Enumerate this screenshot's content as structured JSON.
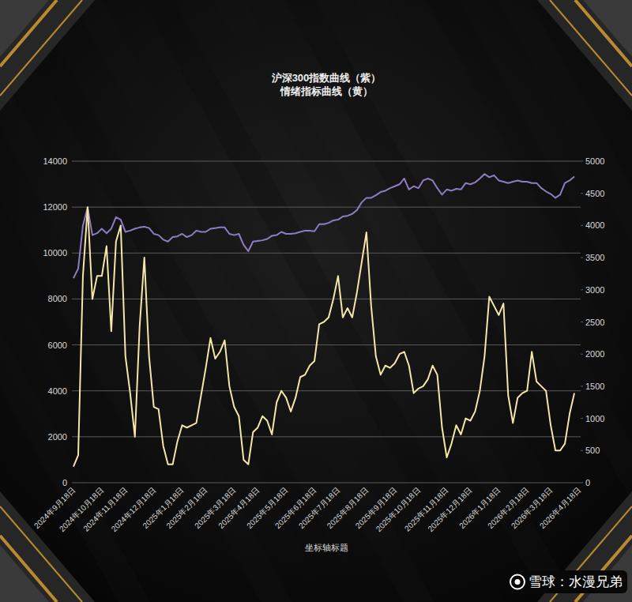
{
  "chart_data": {
    "type": "line",
    "title": "沪深300指数曲线（紫）",
    "subtitle": "情绪指标曲线（黄）",
    "xlabel": "坐标轴标题",
    "annotations": [
      "雪球：水漫兄弟"
    ],
    "grid": true,
    "ylim": [
      0,
      14000
    ],
    "yticks": [
      0,
      2000,
      4000,
      6000,
      8000,
      10000,
      12000,
      14000
    ],
    "y2lim": [
      0,
      5000
    ],
    "y2ticks": [
      0,
      500,
      1000,
      1500,
      2000,
      2500,
      3000,
      3500,
      4000,
      4500,
      5000
    ],
    "categories": [
      "2024年9月18日",
      null,
      null,
      null,
      null,
      null,
      "2024年10月18日",
      null,
      null,
      null,
      null,
      "2024年11月18日",
      null,
      null,
      null,
      null,
      null,
      "2024年12月18日",
      null,
      null,
      null,
      null,
      null,
      "2025年1月18日",
      null,
      null,
      null,
      null,
      "2025年2月18日",
      null,
      null,
      null,
      null,
      null,
      "2025年3月18日",
      null,
      null,
      null,
      null,
      "2025年4月18日",
      null,
      null,
      null,
      null,
      null,
      "2025年5月18日",
      null,
      null,
      null,
      null,
      null,
      "2025年6月18日",
      null,
      null,
      null,
      null,
      "2025年7月18日",
      null,
      null,
      null,
      null,
      null,
      "2025年8月18日",
      null,
      null,
      null,
      null,
      null,
      "2025年9月18日",
      null,
      null,
      null,
      null,
      "2025年10月18日",
      null,
      null,
      null,
      null,
      null,
      "2025年11月18日",
      null,
      null,
      null,
      null,
      "2025年12月18日",
      null,
      null,
      null,
      null,
      null,
      "2026年1月18日",
      null,
      null,
      null,
      null,
      null,
      "2026年2月18日",
      null,
      null,
      null,
      null,
      "2026年3月18日",
      null,
      null,
      null,
      null,
      null,
      "2026年4月18日"
    ],
    "series": [
      {
        "color": "#8e7cc3",
        "axis": "y2",
        "values": [
          3180,
          3330,
          4000,
          4280,
          3850,
          3880,
          3950,
          3880,
          3950,
          4130,
          4090,
          3900,
          3920,
          3950,
          3970,
          3980,
          3960,
          3870,
          3850,
          3780,
          3750,
          3820,
          3830,
          3870,
          3820,
          3850,
          3920,
          3900,
          3900,
          3950,
          3960,
          3970,
          3970,
          3870,
          3850,
          3870,
          3700,
          3600,
          3750,
          3760,
          3770,
          3790,
          3840,
          3850,
          3900,
          3870,
          3870,
          3880,
          3900,
          3920,
          3920,
          3910,
          4020,
          4020,
          4040,
          4080,
          4090,
          4140,
          4150,
          4180,
          4240,
          4360,
          4430,
          4430,
          4470,
          4520,
          4540,
          4580,
          4610,
          4640,
          4730,
          4560,
          4610,
          4580,
          4700,
          4730,
          4700,
          4580,
          4480,
          4560,
          4540,
          4570,
          4560,
          4660,
          4640,
          4670,
          4730,
          4800,
          4750,
          4780,
          4700,
          4680,
          4660,
          4680,
          4700,
          4680,
          4680,
          4660,
          4660,
          4580,
          4530,
          4490,
          4430,
          4480,
          4660,
          4700,
          4760,
          null
        ]
      },
      {
        "color": "#f5e6a8",
        "values": [
          700,
          1200,
          9000,
          12000,
          8000,
          9000,
          9000,
          10300,
          6600,
          10500,
          11200,
          5500,
          3900,
          2000,
          6800,
          9800,
          5500,
          3300,
          3200,
          1600,
          800,
          800,
          1800,
          2500,
          2400,
          2500,
          2600,
          3800,
          5000,
          6300,
          5400,
          5700,
          6200,
          4200,
          3300,
          2900,
          1000,
          800,
          2200,
          2400,
          2900,
          2700,
          2100,
          3500,
          4000,
          3700,
          3100,
          3700,
          4600,
          4700,
          5100,
          5300,
          6900,
          7000,
          7200,
          8000,
          9000,
          7200,
          7600,
          7200,
          8300,
          9600,
          10900,
          7700,
          5500,
          4700,
          5100,
          5000,
          5200,
          5600,
          5700,
          5100,
          3900,
          4100,
          4200,
          4500,
          5100,
          4700,
          2400,
          1100,
          1700,
          2500,
          2100,
          2800,
          2700,
          3100,
          4000,
          5500,
          8100,
          7700,
          7300,
          7800,
          3800,
          2600,
          3700,
          3900,
          4000,
          5700,
          4400,
          4200,
          4000,
          2500,
          1400,
          1400,
          1700,
          3000,
          3900,
          null
        ]
      }
    ]
  }
}
